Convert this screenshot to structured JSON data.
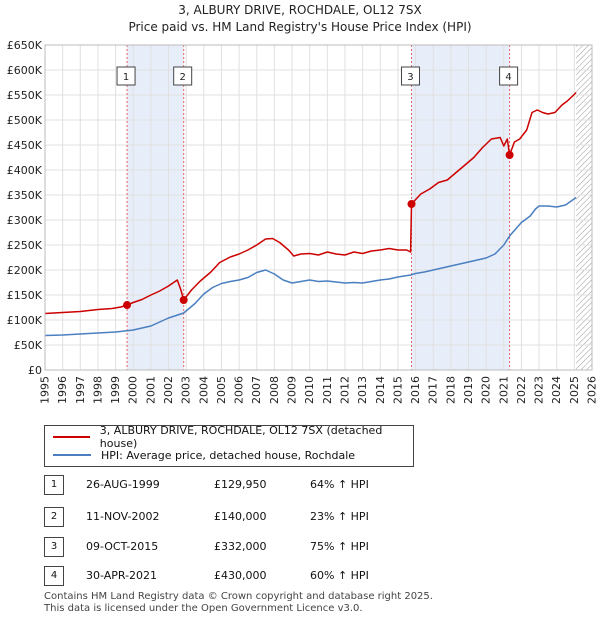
{
  "chart_data": {
    "type": "line",
    "title": "3, ALBURY DRIVE, ROCHDALE, OL12 7SX",
    "subtitle": "Price paid vs. HM Land Registry's House Price Index (HPI)",
    "xlim": [
      1995,
      2026
    ],
    "ylim": [
      0,
      650000
    ],
    "xticks": [
      1995,
      1996,
      1997,
      1998,
      1999,
      2000,
      2001,
      2002,
      2003,
      2004,
      2005,
      2006,
      2007,
      2008,
      2009,
      2010,
      2011,
      2012,
      2013,
      2014,
      2015,
      2016,
      2017,
      2018,
      2019,
      2020,
      2021,
      2022,
      2023,
      2024,
      2025,
      2026
    ],
    "yticks": [
      0,
      50000,
      100000,
      150000,
      200000,
      250000,
      300000,
      350000,
      400000,
      450000,
      500000,
      550000,
      600000,
      650000
    ],
    "ytick_labels": [
      "£0",
      "£50K",
      "£100K",
      "£150K",
      "£200K",
      "£250K",
      "£300K",
      "£350K",
      "£400K",
      "£450K",
      "£500K",
      "£550K",
      "£600K",
      "£650K"
    ],
    "series": [
      {
        "name": "3, ALBURY DRIVE, ROCHDALE, OL12 7SX (detached house)",
        "color": "#cc0000",
        "x": [
          1995.0,
          1996.0,
          1997.0,
          1998.0,
          1998.8,
          1999.3,
          1999.65,
          2000.0,
          2000.5,
          2001.0,
          2001.5,
          2002.0,
          2002.5,
          2002.7,
          2002.86,
          2003.3,
          2003.8,
          2004.4,
          2004.9,
          2005.5,
          2006.0,
          2006.5,
          2007.0,
          2007.5,
          2007.9,
          2008.3,
          2008.8,
          2009.1,
          2009.5,
          2010.0,
          2010.5,
          2011.0,
          2011.5,
          2012.0,
          2012.5,
          2013.0,
          2013.5,
          2014.0,
          2014.5,
          2015.0,
          2015.5,
          2015.72,
          2015.77,
          2016.3,
          2016.8,
          2017.3,
          2017.8,
          2018.3,
          2018.8,
          2019.3,
          2019.8,
          2020.3,
          2020.8,
          2021.0,
          2021.2,
          2021.33,
          2021.6,
          2021.9,
          2022.3,
          2022.6,
          2022.9,
          2023.2,
          2023.5,
          2023.9,
          2024.3,
          2024.6,
          2024.9,
          2025.1
        ],
        "values": [
          113000,
          115000,
          117000,
          121000,
          123000,
          126000,
          129950,
          135000,
          141000,
          150000,
          158000,
          168000,
          180000,
          160000,
          140000,
          160000,
          178000,
          196000,
          215000,
          226000,
          232000,
          240000,
          250000,
          262000,
          263000,
          255000,
          240000,
          228000,
          232000,
          233000,
          230000,
          236000,
          232000,
          230000,
          236000,
          233000,
          238000,
          240000,
          243000,
          240000,
          240000,
          236000,
          332000,
          352000,
          362000,
          375000,
          380000,
          395000,
          410000,
          425000,
          445000,
          462000,
          465000,
          448000,
          462000,
          430000,
          456000,
          462000,
          480000,
          515000,
          520000,
          515000,
          512000,
          515000,
          530000,
          538000,
          548000,
          555000
        ]
      },
      {
        "name": "HPI: Average price, detached house, Rochdale",
        "color": "#4a7fc1",
        "x": [
          1995.0,
          1996.0,
          1997.0,
          1998.0,
          1999.0,
          2000.0,
          2001.0,
          2002.0,
          2002.86,
          2003.5,
          2004.0,
          2004.5,
          2005.0,
          2005.5,
          2006.0,
          2006.5,
          2007.0,
          2007.5,
          2008.0,
          2008.5,
          2009.0,
          2009.5,
          2010.0,
          2010.5,
          2011.0,
          2011.5,
          2012.0,
          2012.5,
          2013.0,
          2013.5,
          2014.0,
          2014.5,
          2015.0,
          2015.72,
          2016.0,
          2016.5,
          2017.0,
          2017.5,
          2018.0,
          2018.5,
          2019.0,
          2019.5,
          2020.0,
          2020.5,
          2021.0,
          2021.33,
          2021.5,
          2022.0,
          2022.5,
          2022.8,
          2023.0,
          2023.5,
          2024.0,
          2024.5,
          2025.1
        ],
        "values": [
          69000,
          70000,
          72000,
          74000,
          76000,
          80000,
          88000,
          104000,
          114000,
          133000,
          152000,
          165000,
          173000,
          177000,
          180000,
          185000,
          195000,
          200000,
          192000,
          180000,
          174000,
          177000,
          180000,
          177000,
          178000,
          176000,
          174000,
          175000,
          174000,
          177000,
          180000,
          182000,
          186000,
          190000,
          193000,
          196000,
          200000,
          204000,
          208000,
          212000,
          216000,
          220000,
          224000,
          232000,
          250000,
          268000,
          275000,
          295000,
          308000,
          322000,
          328000,
          328000,
          326000,
          330000,
          345000
        ]
      }
    ],
    "sales": [
      {
        "id": "1",
        "date": "26-AUG-1999",
        "x": 1999.65,
        "price_value": 129950,
        "price": "£129,950",
        "hpi": "64% ↑ HPI"
      },
      {
        "id": "2",
        "date": "11-NOV-2002",
        "x": 2002.86,
        "price_value": 140000,
        "price": "£140,000",
        "hpi": "23% ↑ HPI"
      },
      {
        "id": "3",
        "date": "09-OCT-2015",
        "x": 2015.77,
        "price_value": 332000,
        "price": "£332,000",
        "hpi": "75% ↑ HPI"
      },
      {
        "id": "4",
        "date": "30-APR-2021",
        "x": 2021.33,
        "price_value": 430000,
        "price": "£430,000",
        "hpi": "60% ↑ HPI"
      }
    ],
    "shaded_ranges": [
      [
        1999.65,
        2002.86
      ],
      [
        2015.77,
        2021.33
      ]
    ],
    "future_hatch_from": 2025.1
  },
  "legend": {
    "property_label": "3, ALBURY DRIVE, ROCHDALE, OL12 7SX (detached house)",
    "hpi_label": "HPI: Average price, detached house, Rochdale"
  },
  "footer": {
    "line1": "Contains HM Land Registry data © Crown copyright and database right 2025.",
    "line2": "This data is licensed under the Open Government Licence v3.0."
  }
}
